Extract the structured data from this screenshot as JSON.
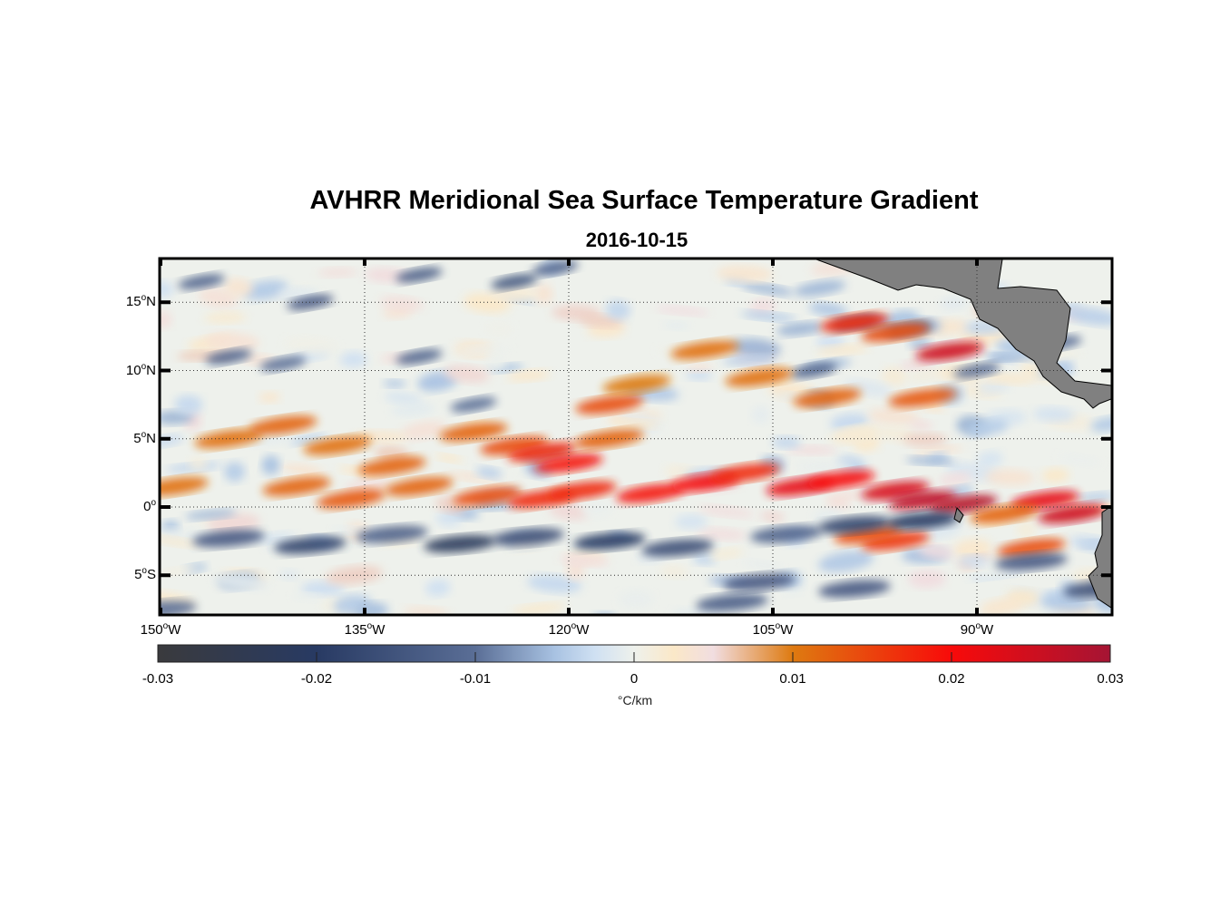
{
  "chart_data": {
    "type": "heatmap",
    "title": "AVHRR Meridional Sea Surface Temperature Gradient",
    "subtitle": "2016-10-15",
    "xlim_lon": [
      -150,
      -80
    ],
    "ylim_lat": [
      -8.3,
      18.3
    ],
    "grid": "dotted",
    "x_ticks": [
      {
        "value": -150,
        "label": "150",
        "suffix": "W"
      },
      {
        "value": -135,
        "label": "135",
        "suffix": "W"
      },
      {
        "value": -120,
        "label": "120",
        "suffix": "W"
      },
      {
        "value": -105,
        "label": "105",
        "suffix": "W"
      },
      {
        "value": -90,
        "label": "90",
        "suffix": "W"
      }
    ],
    "y_ticks": [
      {
        "value": 15,
        "label": "15",
        "suffix": "N"
      },
      {
        "value": 10,
        "label": "10",
        "suffix": "N"
      },
      {
        "value": 5,
        "label": "5",
        "suffix": "N"
      },
      {
        "value": 0,
        "label": "0",
        "suffix": ""
      },
      {
        "value": -5,
        "label": "5",
        "suffix": "S"
      }
    ],
    "colorbar": {
      "range": [
        -0.03,
        0.03
      ],
      "ticks": [
        -0.03,
        -0.02,
        -0.01,
        0,
        0.01,
        0.02,
        0.03
      ],
      "tick_labels": [
        "-0.03",
        "-0.02",
        "-0.01",
        "0",
        "0.01",
        "0.02",
        "0.03"
      ],
      "label": "°C/km",
      "colormap_stops": [
        {
          "v": -0.03,
          "c": "#3a3a3d"
        },
        {
          "v": -0.02,
          "c": "#283a63"
        },
        {
          "v": -0.01,
          "c": "#5a6e96"
        },
        {
          "v": -0.005,
          "c": "#a8c2e2"
        },
        {
          "v": -0.0025,
          "c": "#cfe0f2"
        },
        {
          "v": 0,
          "c": "#eef1ec"
        },
        {
          "v": 0.0025,
          "c": "#fbe8c8"
        },
        {
          "v": 0.005,
          "c": "#f1dde0"
        },
        {
          "v": 0.01,
          "c": "#de7a10"
        },
        {
          "v": 0.02,
          "c": "#f80a0a"
        },
        {
          "v": 0.03,
          "c": "#a51434"
        }
      ]
    },
    "features": [
      {
        "name": "equatorial-warm-front",
        "sign": "positive",
        "lat_range": [
          0,
          5
        ],
        "lon_range": [
          -150,
          -82
        ]
      },
      {
        "name": "equatorial-cold-band",
        "sign": "negative",
        "lat_range": [
          -4,
          0
        ],
        "lon_range": [
          -150,
          -90
        ]
      },
      {
        "name": "land-central-america",
        "sign": "land"
      },
      {
        "name": "land-south-america",
        "sign": "land"
      },
      {
        "name": "galapagos",
        "sign": "land"
      }
    ],
    "land_color": "#808080"
  }
}
